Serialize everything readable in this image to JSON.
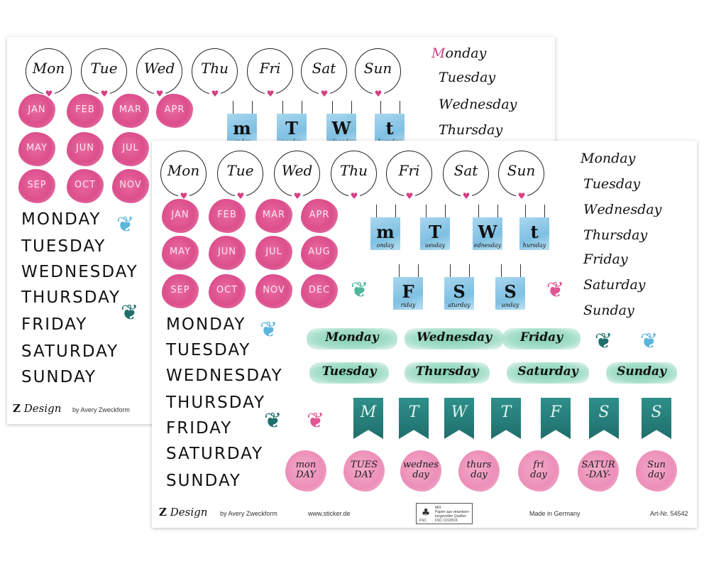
{
  "days_abbrev": [
    "Mon",
    "Tue",
    "Wed",
    "Thu",
    "Fri",
    "Sat",
    "Sun"
  ],
  "months": [
    "JAN",
    "FEB",
    "MAR",
    "APR",
    "MAY",
    "JUN",
    "JUL",
    "AUG",
    "SEP",
    "OCT",
    "NOV",
    "DEC"
  ],
  "days_upper": [
    "MONDAY",
    "TUESDAY",
    "WEDNESDAY",
    "THURSDAY",
    "FRIDAY",
    "SATURDAY",
    "SUNDAY"
  ],
  "days_upper_back": [
    "MONDAY",
    "TUESDAY",
    "WEDNESDAY",
    "THURSDAY",
    "FRIDAY",
    "SATURDAY",
    "SUNDAY"
  ],
  "script_days": [
    {
      "first": "M",
      "rest": "onday"
    },
    {
      "first": "T",
      "rest": "uesday"
    },
    {
      "first": "W",
      "rest": "ednesday"
    },
    {
      "first": "T",
      "rest": "hursday"
    },
    {
      "first": "F",
      "rest": "riday"
    },
    {
      "first": "S",
      "rest": "aturday"
    },
    {
      "first": "S",
      "rest": "unday"
    }
  ],
  "script_days_back": [
    {
      "first": "M",
      "rest": "onday"
    },
    {
      "first": "T",
      "rest": "uesday"
    },
    {
      "first": "W",
      "rest": "ednesday"
    },
    {
      "first": "T",
      "rest": "hursday"
    }
  ],
  "cards_row1": [
    {
      "big": "m",
      "small": "onday"
    },
    {
      "big": "T",
      "small": "uesday"
    },
    {
      "big": "W",
      "small": "ednesday"
    },
    {
      "big": "t",
      "small": "hursday"
    }
  ],
  "cards_row2": [
    {
      "big": "F",
      "small": "riday"
    },
    {
      "big": "S",
      "small": "aturday"
    },
    {
      "big": "S",
      "small": "unday"
    }
  ],
  "cards_back": [
    {
      "big": "m",
      "small": "onday"
    },
    {
      "big": "T",
      "small": "uesday"
    },
    {
      "big": "W",
      "small": "ednesday"
    },
    {
      "big": "t",
      "small": "hursday"
    }
  ],
  "banners": [
    "Monday",
    "Wednesday",
    "Friday",
    "Tuesday",
    "Thursday",
    "Saturday",
    "Sunday"
  ],
  "flags": [
    "M",
    "T",
    "W",
    "T",
    "F",
    "S",
    "S"
  ],
  "stamps": [
    "mon\nDAY",
    "TUES\nDAY",
    "wednes\nday",
    "thurs\nday",
    "fri\nday",
    "SATUR\n-DAY-",
    "Sun\nday"
  ],
  "footer": {
    "logo_mark": "Z",
    "logo_word": "Design",
    "by": "by Avery Zweckform",
    "url": "www.sticker.de",
    "made_in": "Made in  Germany",
    "art_nr": "Art-Nr. 54542",
    "fsc_mix": "MIX\nPapier aus verantwor-\ntungsvollen Quellen\nFSC C013519",
    "fsc_label": "FSC"
  },
  "colors": {
    "pink": "#dc4f8c",
    "light_pink": "#ec8fb8",
    "blue": "#7fc0e3",
    "mint": "#82d0b2",
    "teal": "#1f6f6c",
    "heart": "#d63f83"
  }
}
